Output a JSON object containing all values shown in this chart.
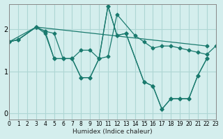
{
  "xlabel": "Humidex (Indice chaleur)",
  "ylabel": "",
  "background_color": "#d4eeed",
  "grid_color": "#aed6d4",
  "line_color": "#1a7a6e",
  "xlim": [
    0,
    23
  ],
  "ylim": [
    -0.15,
    2.6
  ],
  "xtick_labels": [
    "0",
    "1",
    "2",
    "3",
    "4",
    "5",
    "6",
    "7",
    "8",
    "9",
    "10",
    "11",
    "12",
    "13",
    "14",
    "15",
    "16",
    "17",
    "18",
    "19",
    "20",
    "21",
    "22",
    "23"
  ],
  "ytick_positions": [
    0,
    1,
    2
  ],
  "ytick_labels": [
    "0",
    "1",
    "2"
  ],
  "series": [
    {
      "x": [
        0,
        1,
        3,
        4,
        5,
        6,
        7,
        8,
        9,
        10,
        11,
        12,
        14,
        15,
        16,
        17,
        18,
        19,
        20,
        21,
        22,
        23
      ],
      "y": [
        1.7,
        1.75,
        2.05,
        1.95,
        1.9,
        1.3,
        1.3,
        1.5,
        1.5,
        1.3,
        1.35,
        2.35,
        1.85,
        1.7,
        1.55,
        1.6,
        1.6,
        1.55,
        1.5,
        1.45,
        1.4,
        1.6
      ]
    },
    {
      "x": [
        0,
        1,
        3,
        4,
        5,
        6,
        7,
        8,
        9,
        10,
        11,
        12,
        13,
        15,
        16,
        17,
        18,
        19,
        20,
        21,
        22
      ],
      "y": [
        1.7,
        1.75,
        2.05,
        1.95,
        1.3,
        1.3,
        1.3,
        0.85,
        0.85,
        1.3,
        2.55,
        1.85,
        1.9,
        0.75,
        0.65,
        0.1,
        0.35,
        0.35,
        0.35,
        0.9,
        1.3
      ]
    },
    {
      "x": [
        0,
        1,
        3,
        4,
        5,
        6,
        7,
        8,
        9,
        10,
        11,
        12,
        13,
        15,
        16,
        17,
        18,
        19,
        20,
        21,
        22
      ],
      "y": [
        1.7,
        1.75,
        2.05,
        1.9,
        1.3,
        1.3,
        1.3,
        0.85,
        0.85,
        1.3,
        2.55,
        1.85,
        1.9,
        0.75,
        0.65,
        0.1,
        0.35,
        0.35,
        0.35,
        0.9,
        1.3
      ]
    },
    {
      "x": [
        0,
        3,
        22
      ],
      "y": [
        1.7,
        2.05,
        1.6
      ]
    }
  ]
}
